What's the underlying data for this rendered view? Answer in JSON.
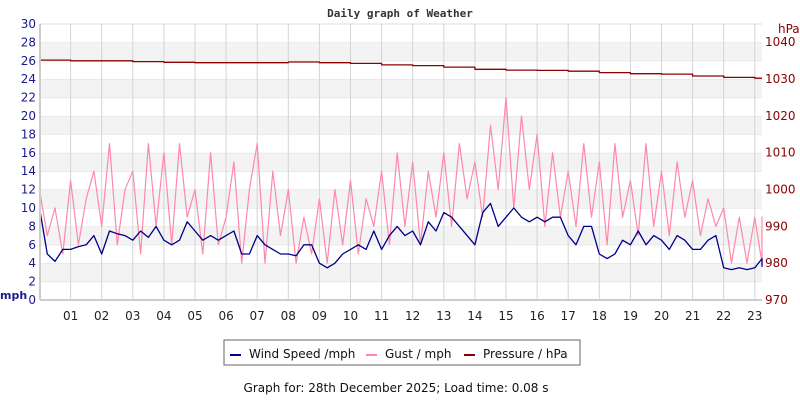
{
  "chart_data": {
    "type": "line",
    "title": "Daily graph of Weather",
    "footer": "Graph for: 28th December 2025; Load time: 0.08 s",
    "x_unit": "hour",
    "x_step_hours": 0.25,
    "xlim": [
      0,
      23.25
    ],
    "x_tick_labels": [
      "01",
      "02",
      "03",
      "04",
      "05",
      "06",
      "07",
      "08",
      "09",
      "10",
      "11",
      "12",
      "13",
      "14",
      "15",
      "16",
      "17",
      "18",
      "19",
      "20",
      "21",
      "22",
      "23"
    ],
    "y_left": {
      "label": "mph",
      "lim": [
        0,
        30
      ],
      "ticks": [
        0,
        2,
        4,
        6,
        8,
        10,
        12,
        14,
        16,
        18,
        20,
        22,
        24,
        26,
        28,
        30
      ],
      "color": "#1a1a8c"
    },
    "y_right": {
      "label": "hPa",
      "lim": [
        970,
        1044.9
      ],
      "ticks": [
        970,
        980,
        990,
        1000,
        1010,
        1020,
        1030,
        1040
      ],
      "color": "#8b0000"
    },
    "grid": true,
    "legend_placement": "bottom",
    "series": [
      {
        "name": "Wind Speed /mph",
        "axis": "left",
        "color": "#00008b",
        "values": [
          10,
          5,
          4.2,
          5.5,
          5.5,
          5.8,
          6,
          7,
          5,
          7.5,
          7.2,
          7,
          6.5,
          7.5,
          6.8,
          8,
          6.5,
          6,
          6.5,
          8.5,
          7.5,
          6.5,
          7,
          6.5,
          7,
          7.5,
          5,
          5,
          7,
          6,
          5.5,
          5,
          5,
          4.8,
          6,
          6,
          4,
          3.5,
          4,
          5,
          5.5,
          6,
          5.5,
          7.5,
          5.5,
          7,
          8,
          7,
          7.5,
          6,
          8.5,
          7.5,
          9.5,
          9,
          8,
          7,
          6,
          9.5,
          10.5,
          8,
          9,
          10,
          9,
          8.5,
          9,
          8.5,
          9,
          9,
          7,
          6,
          8,
          8,
          5,
          4.5,
          5,
          6.5,
          6,
          7.5,
          6,
          7,
          6.5,
          5.5,
          7,
          6.5,
          5.5,
          5.5,
          6.5,
          7,
          3.5,
          3.3,
          3.5,
          3.3,
          3.5,
          4.5,
          4,
          3.6
        ]
      },
      {
        "name": "Gust / mph",
        "axis": "left",
        "color": "#ff88aa",
        "values": [
          12,
          7,
          10,
          5,
          13,
          6,
          11,
          14,
          8,
          17,
          6,
          12,
          14,
          5,
          17,
          8,
          16,
          6,
          17,
          9,
          12,
          5,
          16,
          6,
          9,
          15,
          4,
          12,
          17,
          4,
          14,
          7,
          12,
          4,
          9,
          5,
          11,
          4,
          12,
          6,
          13,
          5,
          11,
          8,
          14,
          6,
          16,
          8,
          15,
          6,
          14,
          9,
          16,
          8,
          17,
          11,
          15,
          9,
          19,
          12,
          22,
          10,
          20,
          12,
          18,
          8,
          16,
          9,
          14,
          8,
          17,
          9,
          15,
          6,
          17,
          9,
          13,
          7,
          17,
          8,
          14,
          7,
          15,
          9,
          13,
          7,
          11,
          8,
          10,
          4,
          9,
          4,
          9,
          4,
          9,
          5
        ]
      },
      {
        "name": "Pressure / hPa",
        "axis": "right",
        "color": "#8b0000",
        "x_step_hours": 1,
        "values": [
          1035.1,
          1034.9,
          1034.9,
          1034.7,
          1034.5,
          1034.4,
          1034.4,
          1034.4,
          1034.6,
          1034.4,
          1034.2,
          1033.8,
          1033.6,
          1033.2,
          1032.6,
          1032.4,
          1032.3,
          1032.1,
          1031.7,
          1031.4,
          1031.3,
          1030.8,
          1030.4,
          1030.2
        ]
      }
    ]
  }
}
